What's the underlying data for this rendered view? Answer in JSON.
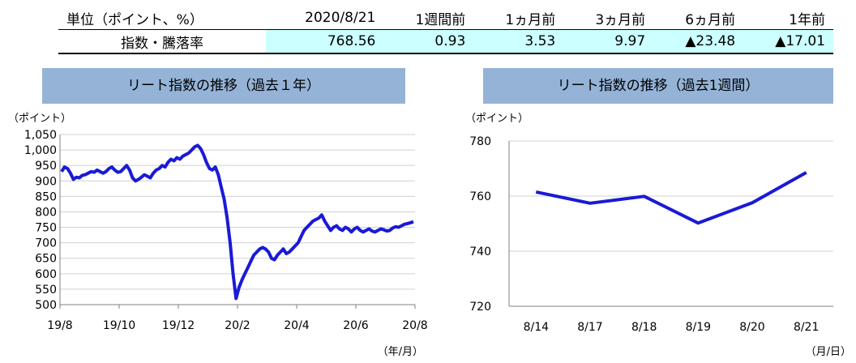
{
  "summary": {
    "header": [
      "単位（ポイント、%）",
      "2020/8/21",
      "1週間前",
      "1ヵ月前",
      "3ヵ月前",
      "6ヵ月前",
      "1年前"
    ],
    "row_label": "指数・騰落率",
    "values": [
      "768.56",
      "0.93",
      "3.53",
      "9.97",
      "23.48",
      "17.01"
    ],
    "negative": [
      false,
      false,
      false,
      false,
      true,
      true
    ]
  },
  "colors": {
    "line": "#1a1ad6",
    "title_bg": "#95b3d7",
    "table_bg": "#ccffff"
  },
  "chart_data": [
    {
      "type": "line",
      "title": "リート指数の推移（過去１年）",
      "ylabel": "（ポイント）",
      "xlabel": "（年/月）",
      "ylim": [
        500,
        1050
      ],
      "yticks": [
        500,
        550,
        600,
        650,
        700,
        750,
        800,
        850,
        900,
        950,
        1000,
        1050
      ],
      "ytick_labels": [
        "500",
        "550",
        "600",
        "650",
        "700",
        "750",
        "800",
        "850",
        "900",
        "950",
        "1,000",
        "1,050"
      ],
      "xtick_labels": [
        "19/8",
        "19/10",
        "19/12",
        "20/2",
        "20/4",
        "20/6",
        "20/8"
      ],
      "grid": "horizontal",
      "series": [
        {
          "values": [
            930,
            945,
            940,
            925,
            905,
            912,
            910,
            918,
            920,
            925,
            930,
            928,
            935,
            930,
            925,
            930,
            940,
            945,
            935,
            928,
            930,
            940,
            950,
            935,
            910,
            900,
            905,
            912,
            920,
            915,
            910,
            925,
            935,
            940,
            950,
            945,
            960,
            970,
            965,
            975,
            970,
            980,
            985,
            990,
            1000,
            1010,
            1015,
            1005,
            985,
            960,
            940,
            935,
            945,
            920,
            880,
            840,
            780,
            700,
            600,
            520,
            555,
            580,
            600,
            620,
            640,
            660,
            670,
            680,
            685,
            680,
            670,
            650,
            645,
            660,
            670,
            680,
            665,
            670,
            680,
            690,
            700,
            720,
            740,
            750,
            760,
            770,
            775,
            780,
            790,
            770,
            755,
            740,
            750,
            755,
            745,
            740,
            750,
            745,
            735,
            745,
            750,
            740,
            735,
            740,
            745,
            738,
            735,
            740,
            745,
            742,
            738,
            740,
            748,
            752,
            750,
            755,
            760,
            762,
            765,
            768
          ]
        }
      ]
    },
    {
      "type": "line",
      "title": "リート指数の推移（過去1週間）",
      "ylabel": "（ポイント）",
      "xlabel": "（月/日）",
      "ylim": [
        720,
        780
      ],
      "yticks": [
        720,
        740,
        760,
        780
      ],
      "categories": [
        "8/14",
        "8/17",
        "8/18",
        "8/19",
        "8/20",
        "8/21"
      ],
      "grid": "horizontal",
      "series": [
        {
          "values": [
            761.5,
            757.4,
            759.9,
            750.2,
            757.6,
            768.56
          ]
        }
      ]
    }
  ]
}
